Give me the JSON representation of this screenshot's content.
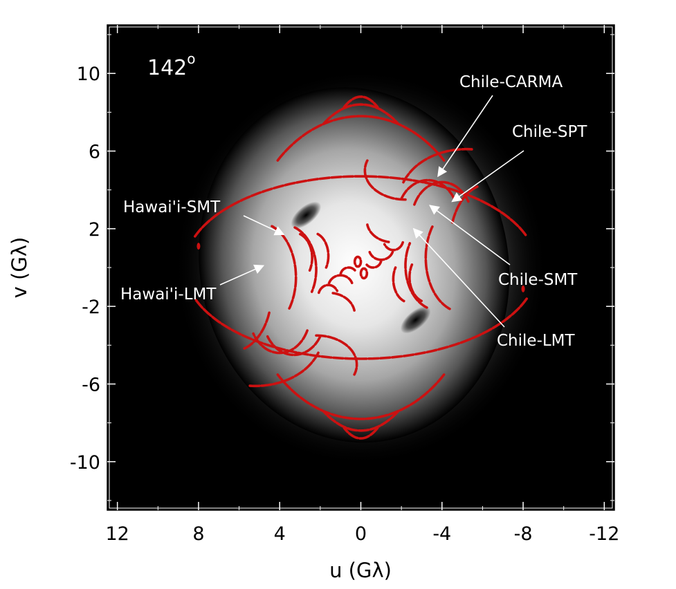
{
  "chart_data": {
    "type": "scatter",
    "title": "",
    "angle_label": "142",
    "angle_unit": "o",
    "xlabel": "u (Gλ)",
    "ylabel": "v (Gλ)",
    "xlim": [
      12.5,
      -12.5
    ],
    "ylim": [
      -12.5,
      12.5
    ],
    "x_ticks": [
      12,
      8,
      4,
      0,
      -4,
      -8,
      -12
    ],
    "x_tick_labels": [
      "12",
      "8",
      "4",
      "0",
      "-4",
      "-8",
      "-12"
    ],
    "y_ticks": [
      10,
      6,
      2,
      -2,
      -6,
      -10
    ],
    "y_tick_labels": [
      "10",
      "6",
      "2",
      "-2",
      "-6",
      "-10"
    ],
    "background": {
      "kind": "visibility_amplitude_image",
      "colormap": "grayscale",
      "minima": [
        [
          2.7,
          2.7
        ],
        [
          -2.7,
          -2.7
        ]
      ]
    },
    "track_color": "#cc1111",
    "annotations": [
      {
        "text": "Chile-CARMA",
        "point": [
          -3.8,
          4.7
        ]
      },
      {
        "text": "Chile-SPT",
        "point": [
          -4.5,
          3.4
        ]
      },
      {
        "text": "Hawai'i-SMT",
        "point": [
          3.8,
          1.7
        ]
      },
      {
        "text": "Chile-SMT",
        "point": [
          -3.4,
          3.2
        ]
      },
      {
        "text": "Hawai'i-LMT",
        "point": [
          4.8,
          0.1
        ]
      },
      {
        "text": "Chile-LMT",
        "point": [
          -2.6,
          2.0
        ]
      }
    ],
    "series": [
      {
        "tracks": [
          {
            "cx": 0,
            "cy": 0,
            "a": 8.7,
            "b": 4.7,
            "t0": 20,
            "t1": 160
          },
          {
            "cx": 0,
            "cy": 0,
            "a": 8.7,
            "b": 4.7,
            "t0": 200,
            "t1": 340
          },
          {
            "cx": 0,
            "cy": 0,
            "a": 5.8,
            "b": 7.8,
            "t0": 45,
            "t1": 135
          },
          {
            "cx": 0,
            "cy": 0,
            "a": 5.8,
            "b": 7.8,
            "t0": 225,
            "t1": 315
          },
          {
            "cx": 0,
            "cy": 0,
            "a": 3.9,
            "b": 8.4,
            "t0": 62,
            "t1": 118
          },
          {
            "cx": 0,
            "cy": 0,
            "a": 3.9,
            "b": 8.4,
            "t0": 242,
            "t1": 298
          },
          {
            "cx": 0,
            "cy": 0,
            "a": 2.4,
            "b": 8.8,
            "t0": 70,
            "t1": 110
          },
          {
            "cx": 0,
            "cy": 0,
            "a": 2.4,
            "b": 8.8,
            "t0": 250,
            "t1": 290
          },
          {
            "cx": -3.3,
            "cy": 2.6,
            "a": 1.5,
            "b": 1.9,
            "t0": 30,
            "t1": 150
          },
          {
            "cx": -4.0,
            "cy": 2.4,
            "a": 1.5,
            "b": 2.0,
            "t0": 25,
            "t1": 150
          },
          {
            "cx": 3.3,
            "cy": -2.6,
            "a": 1.5,
            "b": 1.9,
            "t0": 210,
            "t1": 330
          },
          {
            "cx": 4.0,
            "cy": -2.4,
            "a": 1.5,
            "b": 2.0,
            "t0": 205,
            "t1": 330
          },
          {
            "cx": -6.3,
            "cy": 1.3,
            "a": 1.9,
            "b": 3.0,
            "t0": 20,
            "t1": 75
          },
          {
            "cx": 6.3,
            "cy": -1.3,
            "a": 1.9,
            "b": 3.0,
            "t0": 200,
            "t1": 255
          },
          {
            "cx": 5.0,
            "cy": -0.5,
            "a": 1.8,
            "b": 2.8,
            "t0": 110,
            "t1": 215
          },
          {
            "cx": 3.8,
            "cy": -0.1,
            "a": 1.6,
            "b": 2.3,
            "t0": 110,
            "t1": 210
          },
          {
            "cx": -5.0,
            "cy": 0.5,
            "a": 1.8,
            "b": 2.8,
            "t0": 290,
            "t1": 35
          },
          {
            "cx": -3.8,
            "cy": 0.1,
            "a": 1.6,
            "b": 2.3,
            "t0": 290,
            "t1": 30
          },
          {
            "cx": 3.3,
            "cy": 0.5,
            "a": 0.9,
            "b": 1.3,
            "t0": 110,
            "t1": 210
          },
          {
            "cx": 2.4,
            "cy": 0.6,
            "a": 0.8,
            "b": 1.2,
            "t0": 110,
            "t1": 210
          },
          {
            "cx": -3.3,
            "cy": -0.5,
            "a": 0.9,
            "b": 1.3,
            "t0": 290,
            "t1": 30
          },
          {
            "cx": -2.4,
            "cy": -0.6,
            "a": 0.8,
            "b": 1.2,
            "t0": 290,
            "t1": 30
          },
          {
            "cx": 5.2,
            "cy": -3.5,
            "a": 3.3,
            "b": 2.6,
            "t0": 200,
            "t1": 275
          },
          {
            "cx": -5.2,
            "cy": 3.5,
            "a": 3.3,
            "b": 2.6,
            "t0": 20,
            "t1": 95
          },
          {
            "cx": 1.6,
            "cy": -2.4,
            "a": 1.3,
            "b": 1.1,
            "t0": 100,
            "t1": 170
          },
          {
            "cx": -1.6,
            "cy": 2.4,
            "a": 1.3,
            "b": 1.1,
            "t0": 280,
            "t1": 350
          },
          {
            "cx": 2.2,
            "cy": -5.0,
            "a": 2.0,
            "b": 1.5,
            "t0": 90,
            "t1": 200
          },
          {
            "cx": -2.2,
            "cy": 5.0,
            "a": 2.0,
            "b": 1.5,
            "t0": 270,
            "t1": 20
          },
          {
            "cx": -1.0,
            "cy": 1.0,
            "a": 0.6,
            "b": 0.6,
            "t0": 200,
            "t1": 340
          },
          {
            "cx": -1.6,
            "cy": 1.5,
            "a": 0.5,
            "b": 0.6,
            "t0": 200,
            "t1": 330
          },
          {
            "cx": -0.6,
            "cy": 0.4,
            "a": 0.4,
            "b": 0.4,
            "t0": 180,
            "t1": 320
          },
          {
            "cx": 1.0,
            "cy": -1.0,
            "a": 0.6,
            "b": 0.6,
            "t0": 20,
            "t1": 160
          },
          {
            "cx": 1.6,
            "cy": -1.5,
            "a": 0.5,
            "b": 0.6,
            "t0": 20,
            "t1": 150
          },
          {
            "cx": 0.6,
            "cy": -0.4,
            "a": 0.4,
            "b": 0.4,
            "t0": 0,
            "t1": 140
          },
          {
            "cx": 0.15,
            "cy": 0.3,
            "a": 0.15,
            "b": 0.25,
            "t0": 0,
            "t1": 360
          },
          {
            "cx": -0.15,
            "cy": -0.3,
            "a": 0.15,
            "b": 0.25,
            "t0": 0,
            "t1": 360
          }
        ]
      }
    ],
    "points": [
      {
        "u": 8.0,
        "v": 1.1
      },
      {
        "u": -8.0,
        "v": -1.1
      }
    ]
  }
}
